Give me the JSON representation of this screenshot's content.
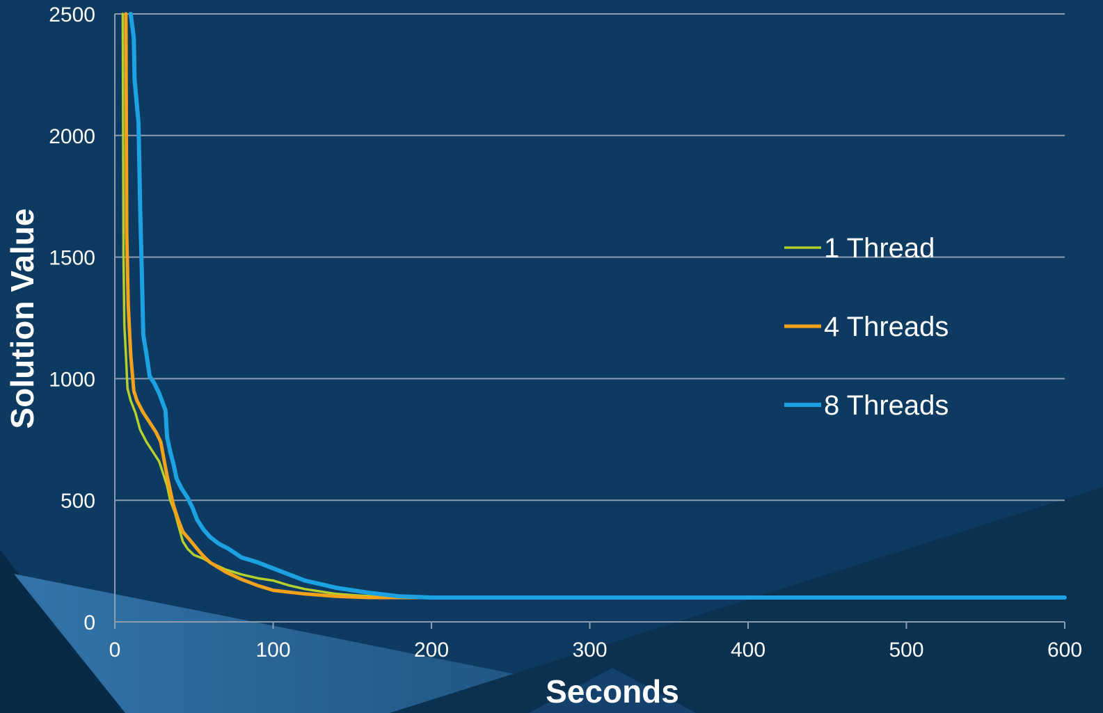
{
  "chart_data": {
    "type": "line",
    "title": "",
    "xlabel": "Seconds",
    "ylabel": "Solution Value",
    "xlim": [
      0,
      600
    ],
    "ylim": [
      0,
      2500
    ],
    "x_ticks": [
      "0",
      "100",
      "200",
      "300",
      "400",
      "500",
      "600"
    ],
    "y_ticks": [
      "0",
      "500",
      "1000",
      "1500",
      "2000",
      "2500"
    ],
    "grid": "horizontal",
    "legend_position": "right",
    "series": [
      {
        "name": "1 Thread",
        "color": "#b5cf2c",
        "points": [
          [
            5,
            2500
          ],
          [
            5.5,
            1500
          ],
          [
            6,
            1220
          ],
          [
            7,
            1100
          ],
          [
            8,
            960
          ],
          [
            10,
            910
          ],
          [
            13,
            860
          ],
          [
            16,
            790
          ],
          [
            20,
            740
          ],
          [
            24,
            700
          ],
          [
            28,
            660
          ],
          [
            30,
            620
          ],
          [
            33,
            560
          ],
          [
            35,
            500
          ],
          [
            38,
            450
          ],
          [
            40,
            400
          ],
          [
            43,
            330
          ],
          [
            46,
            300
          ],
          [
            50,
            275
          ],
          [
            56,
            260
          ],
          [
            60,
            245
          ],
          [
            70,
            215
          ],
          [
            80,
            195
          ],
          [
            90,
            180
          ],
          [
            100,
            170
          ],
          [
            110,
            150
          ],
          [
            120,
            135
          ],
          [
            130,
            125
          ],
          [
            140,
            115
          ],
          [
            150,
            110
          ],
          [
            170,
            102
          ],
          [
            200,
            100
          ],
          [
            300,
            100
          ],
          [
            600,
            100
          ]
        ]
      },
      {
        "name": "4 Threads",
        "color": "#f3a21a",
        "points": [
          [
            7,
            2500
          ],
          [
            7.5,
            1600
          ],
          [
            8.5,
            1300
          ],
          [
            10,
            1100
          ],
          [
            12,
            950
          ],
          [
            14,
            910
          ],
          [
            18,
            860
          ],
          [
            22,
            820
          ],
          [
            26,
            780
          ],
          [
            29,
            740
          ],
          [
            31,
            670
          ],
          [
            33,
            600
          ],
          [
            35,
            540
          ],
          [
            37,
            480
          ],
          [
            40,
            420
          ],
          [
            43,
            370
          ],
          [
            47,
            340
          ],
          [
            52,
            300
          ],
          [
            56,
            270
          ],
          [
            60,
            245
          ],
          [
            65,
            225
          ],
          [
            70,
            205
          ],
          [
            80,
            175
          ],
          [
            90,
            150
          ],
          [
            100,
            130
          ],
          [
            120,
            115
          ],
          [
            140,
            105
          ],
          [
            160,
            100
          ],
          [
            200,
            100
          ],
          [
            300,
            100
          ],
          [
            600,
            100
          ]
        ]
      },
      {
        "name": "8 Threads",
        "color": "#1ca1e2",
        "points": [
          [
            10,
            2500
          ],
          [
            12,
            2400
          ],
          [
            12.5,
            2230
          ],
          [
            15,
            2050
          ],
          [
            16,
            1700
          ],
          [
            17,
            1450
          ],
          [
            18,
            1180
          ],
          [
            20,
            1100
          ],
          [
            22,
            1010
          ],
          [
            25,
            980
          ],
          [
            28,
            940
          ],
          [
            32,
            870
          ],
          [
            33,
            760
          ],
          [
            35,
            700
          ],
          [
            37,
            650
          ],
          [
            39,
            590
          ],
          [
            42,
            550
          ],
          [
            46,
            510
          ],
          [
            49,
            470
          ],
          [
            52,
            420
          ],
          [
            56,
            380
          ],
          [
            60,
            350
          ],
          [
            66,
            320
          ],
          [
            72,
            300
          ],
          [
            80,
            265
          ],
          [
            90,
            245
          ],
          [
            100,
            220
          ],
          [
            110,
            195
          ],
          [
            120,
            170
          ],
          [
            130,
            155
          ],
          [
            140,
            140
          ],
          [
            160,
            120
          ],
          [
            180,
            105
          ],
          [
            200,
            100
          ],
          [
            300,
            100
          ],
          [
            600,
            100
          ]
        ]
      }
    ]
  }
}
